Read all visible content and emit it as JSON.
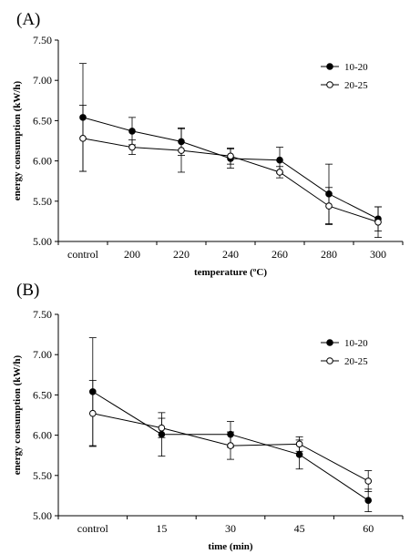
{
  "chart_data": [
    {
      "type": "line",
      "panel_label": "(A)",
      "categories": [
        "control",
        "200",
        "220",
        "240",
        "260",
        "280",
        "300"
      ],
      "xlabel": "temperature (ºC)",
      "ylabel": "energy consumption (kW/h)",
      "ylim": [
        5.0,
        7.5
      ],
      "yticks": [
        "5.00",
        "5.50",
        "6.00",
        "6.50",
        "7.00",
        "7.50"
      ],
      "grid": false,
      "legend_position": "top-right",
      "series": [
        {
          "name": "10-20",
          "marker": "filled-circle",
          "values": [
            6.54,
            6.37,
            6.24,
            6.03,
            6.01,
            5.59,
            5.28
          ],
          "errors": [
            0.67,
            0.17,
            0.17,
            0.12,
            0.16,
            0.37,
            0.15
          ]
        },
        {
          "name": "20-25",
          "marker": "open-circle",
          "values": [
            6.28,
            6.17,
            6.13,
            6.06,
            5.86,
            5.44,
            5.24
          ],
          "errors": [
            0.41,
            0.09,
            0.27,
            0.1,
            0.07,
            0.23,
            0.19
          ]
        }
      ]
    },
    {
      "type": "line",
      "panel_label": "(B)",
      "categories": [
        "control",
        "15",
        "30",
        "45",
        "60"
      ],
      "xlabel": "time (min)",
      "ylabel": "energy consumption (kW/h)",
      "ylim": [
        5.0,
        7.5
      ],
      "yticks": [
        "5.00",
        "5.50",
        "6.00",
        "6.50",
        "7.00",
        "7.50"
      ],
      "grid": false,
      "legend_position": "top-right",
      "series": [
        {
          "name": "10-20",
          "marker": "filled-circle",
          "values": [
            6.54,
            6.01,
            6.01,
            5.76,
            5.19
          ],
          "errors": [
            0.67,
            0.27,
            0.16,
            0.18,
            0.14
          ]
        },
        {
          "name": "20-25",
          "marker": "open-circle",
          "values": [
            6.27,
            6.09,
            5.87,
            5.89,
            5.43
          ],
          "errors": [
            0.41,
            0.12,
            0.17,
            0.09,
            0.13
          ]
        }
      ]
    }
  ]
}
